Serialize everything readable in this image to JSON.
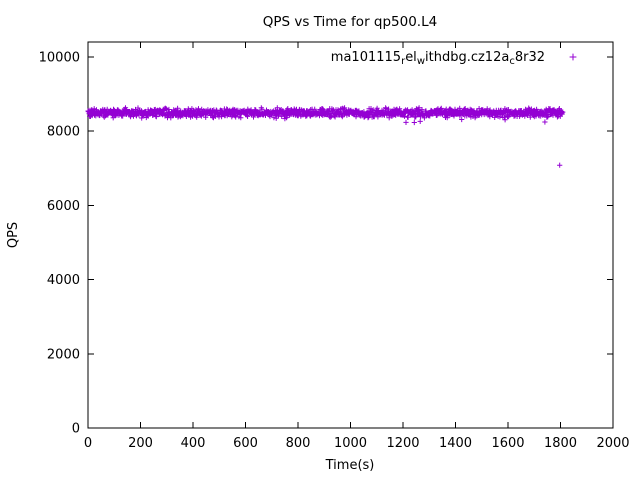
{
  "chart_data": {
    "type": "scatter",
    "title": "QPS vs Time for qp500.L4",
    "xlabel": "Time(s)",
    "ylabel": "QPS",
    "xlim": [
      0,
      2000
    ],
    "ylim": [
      0,
      10400
    ],
    "xticks": [
      0,
      200,
      400,
      600,
      800,
      1000,
      1200,
      1400,
      1600,
      1800,
      2000
    ],
    "yticks": [
      0,
      2000,
      4000,
      6000,
      8000,
      10000
    ],
    "grid": false,
    "legend_position": "top-right-inside",
    "series": [
      {
        "name_segments": [
          {
            "text": "ma101115"
          },
          {
            "text": "r",
            "sub": true
          },
          {
            "text": "el"
          },
          {
            "text": "w",
            "sub": true
          },
          {
            "text": "ithdbg.cz12a"
          },
          {
            "text": "c",
            "sub": true
          },
          {
            "text": "8r32"
          }
        ],
        "marker": "plus",
        "color": "#9400d3",
        "band": {
          "x_start": 0,
          "x_end": 1808,
          "y_mean": 8490,
          "y_sigma": 55,
          "n_points": 1300,
          "seed": 42,
          "low_tail_chance": 0.012,
          "low_tail_drop": 200
        },
        "outliers": [
          [
            1797,
            7080
          ]
        ]
      }
    ]
  }
}
